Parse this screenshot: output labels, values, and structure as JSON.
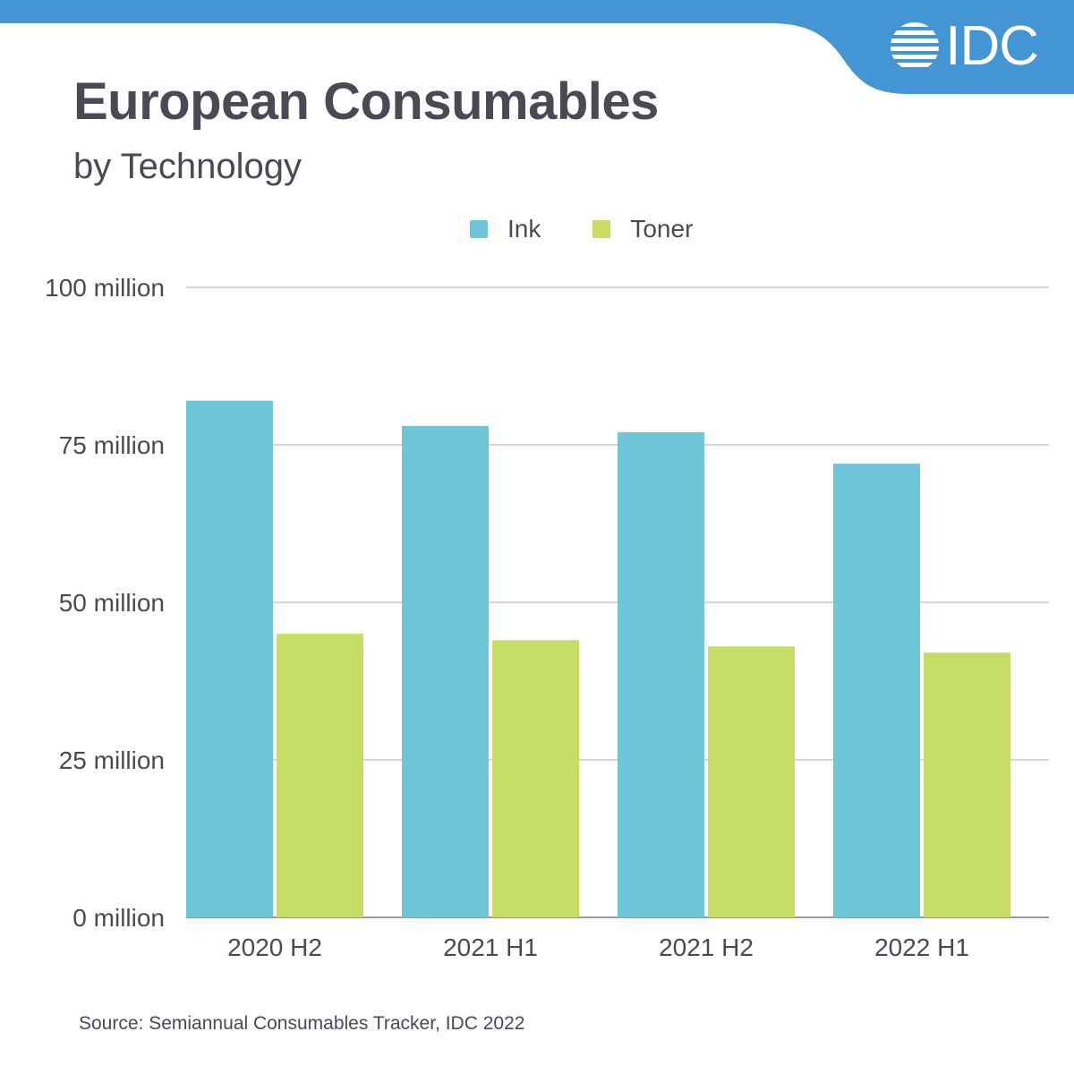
{
  "header": {
    "title": "European Consumables",
    "subtitle": "by Technology",
    "logo_text": "IDC",
    "logo_icon": "idc-globe-stripes-icon",
    "brand_color": "#4396d3"
  },
  "footer": {
    "source": "Source: Semiannual Consumables Tracker, IDC 2022"
  },
  "chart_data": {
    "type": "bar",
    "title": "European Consumables",
    "subtitle": "by Technology",
    "xlabel": "",
    "ylabel": "",
    "categories": [
      "2020 H2",
      "2021 H1",
      "2021 H2",
      "2022 H1"
    ],
    "series": [
      {
        "name": "Ink",
        "color": "#6fc6d8",
        "values": [
          82,
          78,
          77,
          72
        ]
      },
      {
        "name": "Toner",
        "color": "#c5dd64",
        "values": [
          45,
          44,
          43,
          42
        ]
      }
    ],
    "units": "million",
    "ylim": [
      0,
      100
    ],
    "yticks": [
      0,
      25,
      50,
      75,
      100
    ],
    "ytick_labels": [
      "0 million",
      "25 million",
      "50 million",
      "75 million",
      "100 million"
    ],
    "grid": true,
    "legend": {
      "placement": "top-center",
      "entries": [
        "Ink",
        "Toner"
      ]
    }
  }
}
